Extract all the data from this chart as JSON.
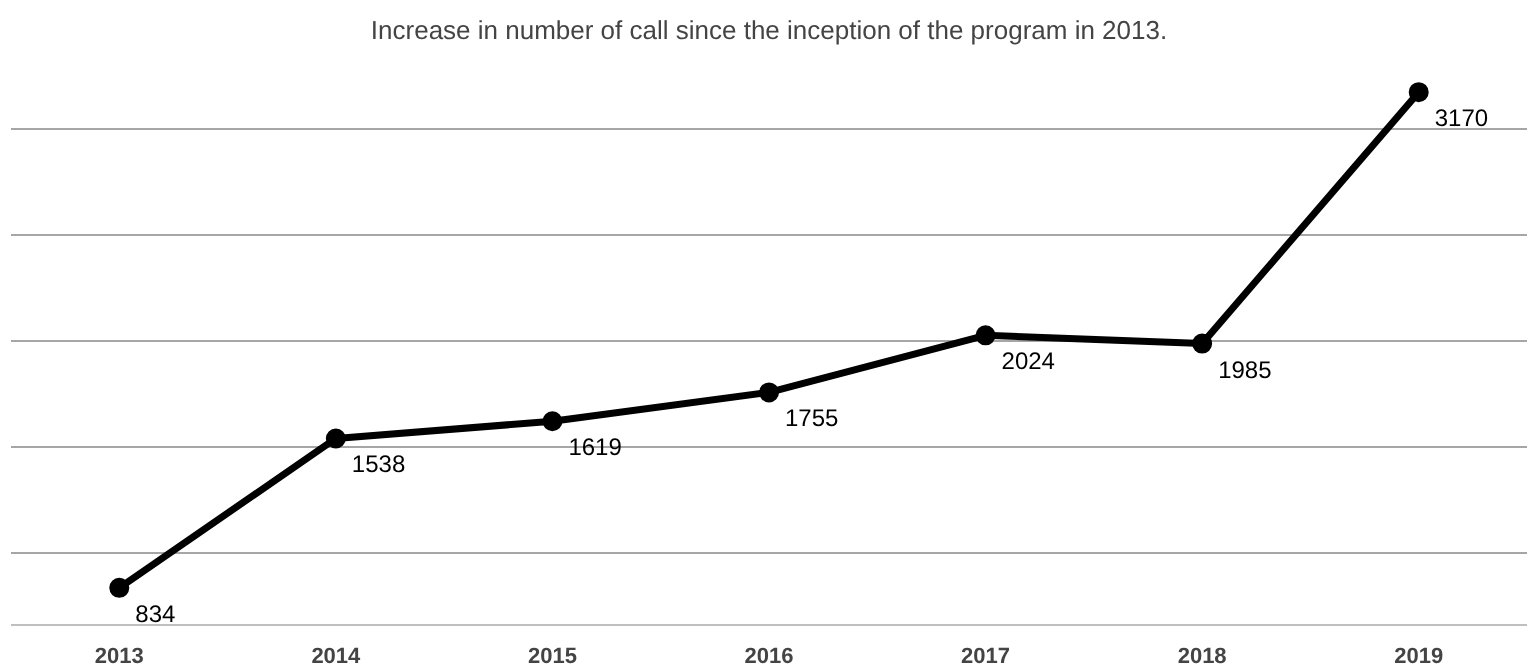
{
  "chart_data": {
    "type": "line",
    "title": "Increase in number of call since the inception of the program in 2013.",
    "categories": [
      "2013",
      "2014",
      "2015",
      "2016",
      "2017",
      "2018",
      "2019"
    ],
    "series": [
      {
        "color": "#000000",
        "values": [
          834,
          1538,
          1619,
          1755,
          2024,
          1985,
          3170
        ]
      }
    ],
    "grid": "y",
    "tick_labels": "x",
    "data_labels": true,
    "marker": "circle",
    "line_style": "solid"
  }
}
